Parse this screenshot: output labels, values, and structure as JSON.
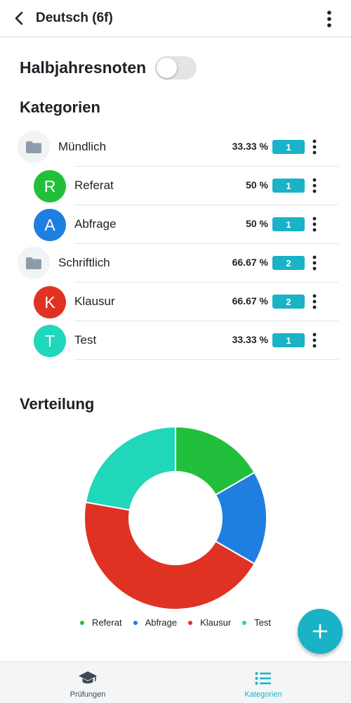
{
  "appbar": {
    "title": "Deutsch (6f)",
    "back_icon": "arrow-back-icon",
    "menu_icon": "more-vertical-icon"
  },
  "half_year": {
    "label": "Halbjahresnoten",
    "enabled": false
  },
  "categories": {
    "title": "Kategorien",
    "rows": [
      {
        "kind": "group",
        "label": "Mündlich",
        "percent": "33.33 %",
        "count": "1"
      },
      {
        "kind": "item",
        "letter": "R",
        "label": "Referat",
        "percent": "50 %",
        "count": "1",
        "color": "#22bf3c"
      },
      {
        "kind": "item",
        "letter": "A",
        "label": "Abfrage",
        "percent": "50 %",
        "count": "1",
        "color": "#1f7fe0"
      },
      {
        "kind": "group",
        "label": "Schriftlich",
        "percent": "66.67 %",
        "count": "2"
      },
      {
        "kind": "item",
        "letter": "K",
        "label": "Klausur",
        "percent": "66.67 %",
        "count": "2",
        "color": "#e03222"
      },
      {
        "kind": "item",
        "letter": "T",
        "label": "Test",
        "percent": "33.33 %",
        "count": "1",
        "color": "#20d7b9"
      }
    ]
  },
  "distribution": {
    "title": "Verteilung"
  },
  "chart_data": {
    "type": "pie",
    "donut": true,
    "categories": [
      "Referat",
      "Abfrage",
      "Klausur",
      "Test"
    ],
    "values": [
      16.67,
      16.67,
      44.44,
      22.22
    ],
    "colors": [
      "#22bf3c",
      "#1f7fe0",
      "#e03222",
      "#20d7b9"
    ],
    "legend": "bottom"
  },
  "fab": {
    "icon": "plus-icon"
  },
  "bottom_nav": {
    "items": [
      {
        "label": "Prüfungen",
        "icon": "graduation-cap-icon",
        "active": false
      },
      {
        "label": "Kategorien",
        "icon": "list-icon",
        "active": true
      }
    ]
  },
  "colors": {
    "accent": "#19b2c7",
    "text": "#1c2126"
  }
}
